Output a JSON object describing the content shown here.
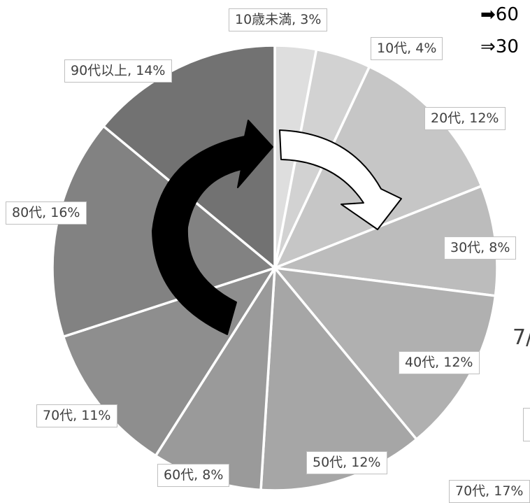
{
  "chart_data": {
    "type": "pie",
    "title": "",
    "categories": [
      "10歳未満",
      "10代",
      "20代",
      "30代",
      "40代",
      "50代",
      "60代",
      "70代",
      "80代",
      "90代以上"
    ],
    "values": [
      3,
      4,
      12,
      8,
      12,
      12,
      8,
      11,
      16,
      14
    ],
    "labels": [
      "10歳未満, 3%",
      "10代, 4%",
      "20代, 12%",
      "30代, 8%",
      "40代, 12%",
      "50代, 12%",
      "60代, 8%",
      "70代, 11%",
      "80代, 16%",
      "90代以上, 14%"
    ],
    "colors": [
      "#dedede",
      "#d2d2d2",
      "#c6c6c6",
      "#bcbcbc",
      "#b0b0b0",
      "#a6a6a6",
      "#9a9a9a",
      "#8e8e8e",
      "#828282",
      "#727272"
    ],
    "start_angle": "12 o'clock",
    "direction": "clockwise",
    "legend": "none",
    "annotations": [
      {
        "name": "black-arrow",
        "style": "solid black",
        "direction": "clockwise"
      },
      {
        "name": "white-arrow",
        "style": "white outlined",
        "direction": "clockwise"
      }
    ]
  },
  "side_text": {
    "line1": "➡60",
    "line2": "⇒30",
    "fragment": "7/"
  },
  "clipped_label": "70代, 17%"
}
